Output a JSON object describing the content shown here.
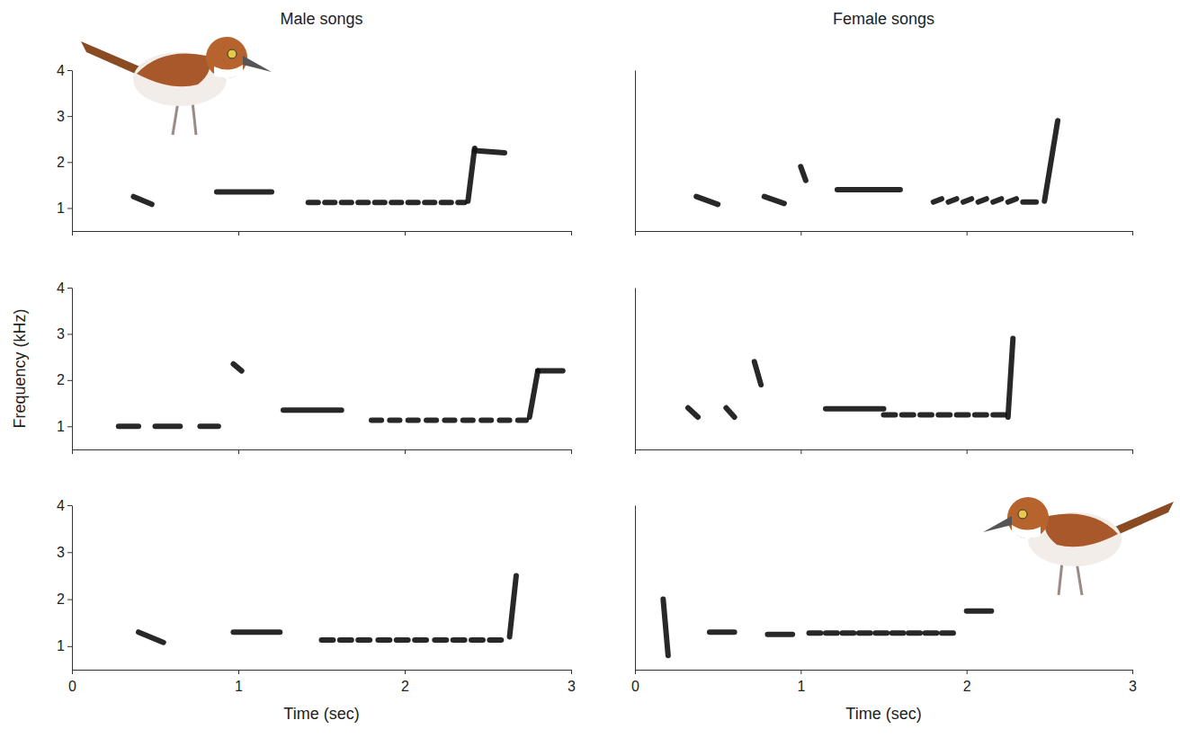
{
  "chart_data": [
    {
      "type": "spectrogram",
      "title": "Male songs",
      "color": "#111111",
      "tick_labels": "y",
      "xlim": [
        0,
        3
      ],
      "xticks": [
        0,
        1,
        2,
        3
      ],
      "ylim": [
        0.5,
        4
      ],
      "yticks": [
        1,
        2,
        3,
        4
      ],
      "notes": [
        {
          "t": [
            0.37,
            0.48
          ],
          "f": [
            1.25,
            1.08
          ]
        },
        {
          "t": [
            0.87,
            1.2
          ],
          "f": [
            1.35,
            1.35
          ]
        },
        {
          "t": [
            1.42,
            1.48
          ],
          "f": [
            1.12,
            1.12
          ]
        },
        {
          "t": [
            1.52,
            1.58
          ],
          "f": [
            1.12,
            1.12
          ]
        },
        {
          "t": [
            1.62,
            1.68
          ],
          "f": [
            1.12,
            1.12
          ]
        },
        {
          "t": [
            1.72,
            1.78
          ],
          "f": [
            1.12,
            1.12
          ]
        },
        {
          "t": [
            1.82,
            1.88
          ],
          "f": [
            1.12,
            1.12
          ]
        },
        {
          "t": [
            1.92,
            1.98
          ],
          "f": [
            1.12,
            1.12
          ]
        },
        {
          "t": [
            2.02,
            2.08
          ],
          "f": [
            1.12,
            1.12
          ]
        },
        {
          "t": [
            2.12,
            2.18
          ],
          "f": [
            1.12,
            1.12
          ]
        },
        {
          "t": [
            2.22,
            2.28
          ],
          "f": [
            1.12,
            1.12
          ]
        },
        {
          "t": [
            2.32,
            2.36
          ],
          "f": [
            1.12,
            1.12
          ]
        },
        {
          "t": [
            2.38,
            2.42
          ],
          "f": [
            1.15,
            2.3
          ]
        },
        {
          "t": [
            2.42,
            2.6
          ],
          "f": [
            2.25,
            2.2
          ]
        }
      ]
    },
    {
      "type": "spectrogram",
      "y_label": "Frequency (kHz)",
      "color": "#111111",
      "tick_labels": "y",
      "xlim": [
        0,
        3
      ],
      "xticks": [
        0,
        1,
        2,
        3
      ],
      "ylim": [
        0.5,
        4
      ],
      "yticks": [
        1,
        2,
        3,
        4
      ],
      "notes": [
        {
          "t": [
            0.28,
            0.4
          ],
          "f": [
            1.0,
            1.0
          ]
        },
        {
          "t": [
            0.5,
            0.65
          ],
          "f": [
            1.0,
            1.0
          ]
        },
        {
          "t": [
            0.77,
            0.88
          ],
          "f": [
            1.0,
            1.0
          ]
        },
        {
          "t": [
            0.97,
            1.02
          ],
          "f": [
            2.35,
            2.2
          ]
        },
        {
          "t": [
            1.27,
            1.62
          ],
          "f": [
            1.35,
            1.35
          ]
        },
        {
          "t": [
            1.8,
            1.86
          ],
          "f": [
            1.13,
            1.13
          ]
        },
        {
          "t": [
            1.91,
            1.97
          ],
          "f": [
            1.13,
            1.13
          ]
        },
        {
          "t": [
            2.02,
            2.08
          ],
          "f": [
            1.13,
            1.13
          ]
        },
        {
          "t": [
            2.13,
            2.19
          ],
          "f": [
            1.13,
            1.13
          ]
        },
        {
          "t": [
            2.24,
            2.3
          ],
          "f": [
            1.13,
            1.13
          ]
        },
        {
          "t": [
            2.35,
            2.41
          ],
          "f": [
            1.13,
            1.13
          ]
        },
        {
          "t": [
            2.46,
            2.52
          ],
          "f": [
            1.13,
            1.13
          ]
        },
        {
          "t": [
            2.57,
            2.63
          ],
          "f": [
            1.13,
            1.13
          ]
        },
        {
          "t": [
            2.68,
            2.73
          ],
          "f": [
            1.13,
            1.13
          ]
        },
        {
          "t": [
            2.75,
            2.8
          ],
          "f": [
            1.2,
            2.2
          ]
        },
        {
          "t": [
            2.8,
            2.95
          ],
          "f": [
            2.2,
            2.2
          ]
        }
      ]
    },
    {
      "type": "spectrogram",
      "x_label": "Time (sec)",
      "color": "#111111",
      "tick_labels": true,
      "xlim": [
        0,
        3
      ],
      "xticks": [
        0,
        1,
        2,
        3
      ],
      "ylim": [
        0.5,
        4
      ],
      "yticks": [
        1,
        2,
        3,
        4
      ],
      "notes": [
        {
          "t": [
            0.4,
            0.55
          ],
          "f": [
            1.3,
            1.08
          ]
        },
        {
          "t": [
            0.97,
            1.25
          ],
          "f": [
            1.3,
            1.3
          ]
        },
        {
          "t": [
            1.5,
            1.57
          ],
          "f": [
            1.13,
            1.13
          ]
        },
        {
          "t": [
            1.61,
            1.68
          ],
          "f": [
            1.13,
            1.13
          ]
        },
        {
          "t": [
            1.72,
            1.79
          ],
          "f": [
            1.13,
            1.13
          ]
        },
        {
          "t": [
            1.84,
            1.91
          ],
          "f": [
            1.13,
            1.13
          ]
        },
        {
          "t": [
            1.95,
            2.02
          ],
          "f": [
            1.13,
            1.13
          ]
        },
        {
          "t": [
            2.06,
            2.13
          ],
          "f": [
            1.13,
            1.13
          ]
        },
        {
          "t": [
            2.18,
            2.25
          ],
          "f": [
            1.13,
            1.13
          ]
        },
        {
          "t": [
            2.29,
            2.36
          ],
          "f": [
            1.13,
            1.13
          ]
        },
        {
          "t": [
            2.4,
            2.47
          ],
          "f": [
            1.13,
            1.13
          ]
        },
        {
          "t": [
            2.51,
            2.58
          ],
          "f": [
            1.13,
            1.13
          ]
        },
        {
          "t": [
            2.63,
            2.67
          ],
          "f": [
            1.2,
            2.5
          ]
        }
      ]
    },
    {
      "type": "spectrogram",
      "title": "Female songs",
      "color": "#111111",
      "tick_labels": false,
      "xlim": [
        0,
        3
      ],
      "xticks": [
        0,
        1,
        2,
        3
      ],
      "ylim": [
        0.5,
        4
      ],
      "notes": [
        {
          "t": [
            0.37,
            0.5
          ],
          "f": [
            1.25,
            1.08
          ]
        },
        {
          "t": [
            0.78,
            0.9
          ],
          "f": [
            1.25,
            1.1
          ]
        },
        {
          "t": [
            1.0,
            1.03
          ],
          "f": [
            1.9,
            1.6
          ]
        },
        {
          "t": [
            1.22,
            1.6
          ],
          "f": [
            1.4,
            1.4
          ]
        },
        {
          "t": [
            1.8,
            1.85
          ],
          "f": [
            1.13,
            1.2
          ]
        },
        {
          "t": [
            1.89,
            1.94
          ],
          "f": [
            1.13,
            1.2
          ]
        },
        {
          "t": [
            1.98,
            2.03
          ],
          "f": [
            1.13,
            1.2
          ]
        },
        {
          "t": [
            2.07,
            2.12
          ],
          "f": [
            1.13,
            1.2
          ]
        },
        {
          "t": [
            2.16,
            2.21
          ],
          "f": [
            1.13,
            1.2
          ]
        },
        {
          "t": [
            2.25,
            2.3
          ],
          "f": [
            1.13,
            1.2
          ]
        },
        {
          "t": [
            2.34,
            2.42
          ],
          "f": [
            1.13,
            1.13
          ]
        },
        {
          "t": [
            2.47,
            2.55
          ],
          "f": [
            1.15,
            2.9
          ]
        }
      ]
    },
    {
      "type": "spectrogram",
      "color": "#111111",
      "tick_labels": false,
      "xlim": [
        0,
        3
      ],
      "xticks": [
        0,
        1,
        2,
        3
      ],
      "ylim": [
        0.5,
        4
      ],
      "notes": [
        {
          "t": [
            0.32,
            0.38
          ],
          "f": [
            1.4,
            1.2
          ]
        },
        {
          "t": [
            0.55,
            0.6
          ],
          "f": [
            1.4,
            1.2
          ]
        },
        {
          "t": [
            0.72,
            0.76
          ],
          "f": [
            2.4,
            1.9
          ]
        },
        {
          "t": [
            1.15,
            1.5
          ],
          "f": [
            1.38,
            1.38
          ]
        },
        {
          "t": [
            1.5,
            1.57
          ],
          "f": [
            1.25,
            1.25
          ]
        },
        {
          "t": [
            1.61,
            1.68
          ],
          "f": [
            1.25,
            1.25
          ]
        },
        {
          "t": [
            1.72,
            1.79
          ],
          "f": [
            1.25,
            1.25
          ]
        },
        {
          "t": [
            1.83,
            1.9
          ],
          "f": [
            1.25,
            1.25
          ]
        },
        {
          "t": [
            1.94,
            2.01
          ],
          "f": [
            1.25,
            1.25
          ]
        },
        {
          "t": [
            2.05,
            2.12
          ],
          "f": [
            1.25,
            1.25
          ]
        },
        {
          "t": [
            2.16,
            2.23
          ],
          "f": [
            1.25,
            1.25
          ]
        },
        {
          "t": [
            2.25,
            2.28
          ],
          "f": [
            1.2,
            2.9
          ]
        }
      ]
    },
    {
      "type": "spectrogram",
      "x_label": "Time (sec)",
      "color": "#111111",
      "tick_labels": "x",
      "xlim": [
        0,
        3
      ],
      "xticks": [
        0,
        1,
        2,
        3
      ],
      "ylim": [
        0.5,
        4
      ],
      "notes": [
        {
          "t": [
            0.17,
            0.2
          ],
          "f": [
            2.0,
            0.8
          ]
        },
        {
          "t": [
            0.45,
            0.6
          ],
          "f": [
            1.3,
            1.3
          ]
        },
        {
          "t": [
            0.8,
            0.95
          ],
          "f": [
            1.25,
            1.25
          ]
        },
        {
          "t": [
            1.05,
            1.12
          ],
          "f": [
            1.28,
            1.28
          ]
        },
        {
          "t": [
            1.15,
            1.22
          ],
          "f": [
            1.28,
            1.28
          ]
        },
        {
          "t": [
            1.25,
            1.32
          ],
          "f": [
            1.28,
            1.28
          ]
        },
        {
          "t": [
            1.35,
            1.42
          ],
          "f": [
            1.28,
            1.28
          ]
        },
        {
          "t": [
            1.45,
            1.52
          ],
          "f": [
            1.28,
            1.28
          ]
        },
        {
          "t": [
            1.55,
            1.62
          ],
          "f": [
            1.28,
            1.28
          ]
        },
        {
          "t": [
            1.65,
            1.72
          ],
          "f": [
            1.28,
            1.28
          ]
        },
        {
          "t": [
            1.75,
            1.82
          ],
          "f": [
            1.28,
            1.28
          ]
        },
        {
          "t": [
            1.85,
            1.92
          ],
          "f": [
            1.28,
            1.28
          ]
        },
        {
          "t": [
            2.0,
            2.15
          ],
          "f": [
            1.75,
            1.75
          ]
        }
      ]
    }
  ]
}
